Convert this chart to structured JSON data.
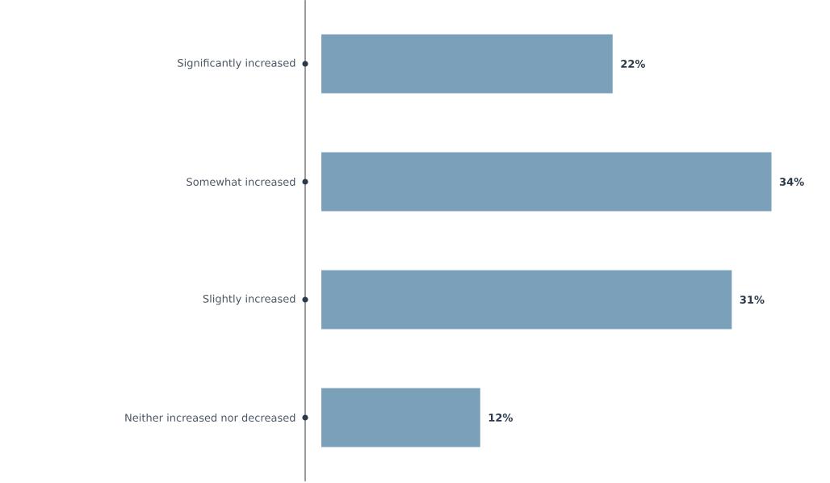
{
  "chart_data": {
    "type": "bar",
    "orientation": "horizontal",
    "categories": [
      "Significantly increased",
      "Somewhat increased",
      "Slightly increased",
      "Neither increased nor decreased"
    ],
    "values": [
      22,
      34,
      31,
      12
    ],
    "color": "#7ba0ba",
    "value_labels": [
      "22%",
      "34%",
      "31%",
      "12%"
    ]
  }
}
